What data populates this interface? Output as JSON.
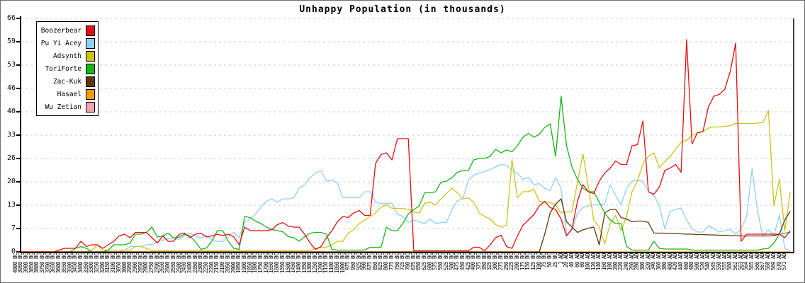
{
  "title": "Unhappy Population (in thousands)",
  "chart_data": {
    "type": "line",
    "title": "Unhappy Population (in thousands)",
    "xlabel": "",
    "ylabel": "",
    "y_ticks": [
      0,
      7,
      13,
      20,
      26,
      33,
      40,
      46,
      53,
      59,
      66
    ],
    "y_max": 66,
    "grid": "horizontal-dashed",
    "gridline_color": "#c9c9c9",
    "axis_color": "#000000",
    "legend_position": "top-left",
    "x_categories": [
      "4000 BC",
      "3950 BC",
      "3900 BC",
      "3850 BC",
      "3800 BC",
      "3750 BC",
      "3700 BC",
      "3650 BC",
      "3600 BC",
      "3550 BC",
      "3500 BC",
      "3450 BC",
      "3400 BC",
      "3350 BC",
      "3300 BC",
      "3250 BC",
      "3200 BC",
      "3150 BC",
      "3100 BC",
      "3050 BC",
      "3000 BC",
      "2950 BC",
      "2900 BC",
      "2850 BC",
      "2800 BC",
      "2750 BC",
      "2700 BC",
      "2650 BC",
      "2600 BC",
      "2550 BC",
      "2500 BC",
      "2450 BC",
      "2400 BC",
      "2350 BC",
      "2300 BC",
      "2250 BC",
      "2200 BC",
      "2150 BC",
      "2100 BC",
      "2050 BC",
      "2000 BC",
      "1950 BC",
      "1900 BC",
      "1850 BC",
      "1800 BC",
      "1750 BC",
      "1700 BC",
      "1650 BC",
      "1600 BC",
      "1550 BC",
      "1500 BC",
      "1450 BC",
      "1400 BC",
      "1350 BC",
      "1300 BC",
      "1250 BC",
      "1200 BC",
      "1150 BC",
      "1100 BC",
      "1050 BC",
      "1000 BC",
      "975 BC",
      "950 BC",
      "925 BC",
      "900 BC",
      "875 BC",
      "850 BC",
      "825 BC",
      "800 BC",
      "775 BC",
      "750 BC",
      "725 BC",
      "700 BC",
      "675 BC",
      "650 BC",
      "625 BC",
      "600 BC",
      "575 BC",
      "550 BC",
      "525 BC",
      "500 BC",
      "475 BC",
      "450 BC",
      "425 BC",
      "400 BC",
      "375 BC",
      "350 BC",
      "325 BC",
      "300 BC",
      "275 BC",
      "250 BC",
      "225 BC",
      "200 BC",
      "175 BC",
      "150 BC",
      "125 BC",
      "100 BC",
      "75 BC",
      "50 BC",
      "25 BC",
      "1 AD",
      "20 AD",
      "40 AD",
      "60 AD",
      "80 AD",
      "100 AD",
      "120 AD",
      "140 AD",
      "160 AD",
      "180 AD",
      "200 AD",
      "220 AD",
      "240 AD",
      "260 AD",
      "280 AD",
      "300 AD",
      "320 AD",
      "340 AD",
      "360 AD",
      "380 AD",
      "400 AD",
      "420 AD",
      "440 AD",
      "460 AD",
      "480 AD",
      "500 AD",
      "520 AD",
      "540 AD",
      "545 AD",
      "550 AD",
      "555 AD",
      "560 AD",
      "562 AD",
      "563 AD",
      "564 AD",
      "565 AD",
      "566 AD",
      "567 AD",
      "568 AD",
      "569 AD",
      "570 AD",
      "571 AD"
    ],
    "series": [
      {
        "name": "Boozerbear",
        "color": "#e60f0f",
        "values": [
          0,
          0,
          0,
          0,
          0,
          0,
          0,
          0.5,
          1,
          1,
          1,
          3,
          1.5,
          2,
          2,
          1,
          2,
          3,
          4.5,
          5,
          4,
          5.5,
          5.5,
          5.5,
          4,
          2.5,
          4.5,
          3,
          3,
          5,
          5.3,
          4,
          5,
          5.3,
          4.2,
          4.5,
          5,
          4.6,
          5,
          4.3,
          2,
          7,
          6,
          6,
          6,
          6,
          6.3,
          7.7,
          8.3,
          7.3,
          7,
          7,
          5,
          2.5,
          0.7,
          1.5,
          4,
          6,
          8.5,
          10,
          9.7,
          11,
          11.7,
          10.3,
          10.3,
          25,
          27.5,
          28,
          26,
          32,
          32,
          32,
          0.3,
          0.3,
          0.3,
          0.3,
          0.3,
          0.3,
          0.3,
          0.3,
          0.3,
          0.3,
          0.3,
          1.3,
          1.3,
          0.3,
          2,
          4,
          4.7,
          1.5,
          1,
          4.5,
          7.5,
          9,
          10.5,
          13,
          14.3,
          12.5,
          12,
          9.3,
          4.5,
          6.5,
          14.3,
          19,
          17,
          16.5,
          20,
          22.3,
          23.7,
          25.7,
          24.7,
          24.7,
          30,
          30.3,
          37,
          17,
          16.3,
          18.3,
          23,
          23.7,
          24.7,
          22.5,
          60,
          30.5,
          33.7,
          34,
          41,
          44,
          44.5,
          46,
          51,
          59,
          3,
          5,
          5,
          5,
          5,
          5,
          5,
          5,
          4,
          6
        ]
      },
      {
        "name": "Pu Yi Acey",
        "color": "#8fd0f2",
        "values": [
          0,
          0,
          0,
          0,
          0,
          0,
          0,
          0,
          0,
          0,
          0,
          0,
          0,
          0,
          0,
          0,
          0,
          0,
          0,
          0.5,
          1.5,
          1.5,
          1.5,
          2,
          2.1,
          2.8,
          3.3,
          3.7,
          3.9,
          3.5,
          4.6,
          5.3,
          4.5,
          3.9,
          4.6,
          3.5,
          3,
          2.8,
          4.6,
          5.5,
          4,
          8.3,
          9.3,
          10.7,
          12.7,
          14.3,
          15,
          14,
          15,
          15,
          15.3,
          18,
          19,
          21,
          22.3,
          23,
          20,
          20.3,
          19.5,
          15.3,
          15.3,
          15.3,
          15.3,
          17,
          17,
          14,
          13.7,
          13.7,
          13.7,
          10.7,
          10,
          8.3,
          9,
          8.5,
          8,
          9.3,
          8,
          8.3,
          8.3,
          12,
          14.5,
          15,
          20.3,
          21.7,
          22.3,
          22.7,
          23.3,
          24,
          24.7,
          24.5,
          23,
          22.3,
          20.5,
          21,
          19,
          19.3,
          18,
          17.3,
          21,
          18,
          5,
          6,
          11,
          12.5,
          13,
          13.3,
          13.3,
          13.5,
          19,
          16,
          13.3,
          18,
          20,
          20.3,
          20,
          17,
          16,
          13,
          6.5,
          11.5,
          12,
          12.4,
          9,
          6.6,
          5.6,
          5.6,
          7.4,
          6.6,
          5.6,
          6,
          6.3,
          5,
          6.5,
          10,
          23.5,
          11.5,
          4.3,
          6.3,
          4.7,
          10.3,
          1,
          0.3
        ]
      },
      {
        "name": "Adsynth",
        "color": "#cfc218",
        "values": [
          0,
          0,
          0,
          0,
          0,
          0,
          0,
          0,
          0,
          0,
          0,
          0,
          0,
          0.5,
          2,
          0.5,
          0.5,
          0.5,
          0.5,
          0.5,
          0.5,
          1.5,
          1.5,
          1,
          0.4,
          0.4,
          0.4,
          0.4,
          0.4,
          0.4,
          0.4,
          0.4,
          0.4,
          0.4,
          0.4,
          0.4,
          0.4,
          0.4,
          0.4,
          0.4,
          0.4,
          0.4,
          0.4,
          0.4,
          0.4,
          0.4,
          0.4,
          0.4,
          0.4,
          0.4,
          0.4,
          0.4,
          0.4,
          0.4,
          1,
          1.2,
          1.3,
          2,
          3,
          3,
          5.3,
          6.3,
          8,
          9,
          10,
          11,
          12.7,
          13.3,
          12.3,
          12.3,
          12.3,
          12,
          11.3,
          11,
          13.7,
          14,
          13.3,
          15,
          16.5,
          18,
          16.7,
          15,
          15.3,
          14,
          11,
          10,
          9.3,
          7.7,
          7,
          7.5,
          26,
          15.3,
          17,
          17,
          17.7,
          14.3,
          14,
          14,
          13.3,
          11,
          11.3,
          11.3,
          19.7,
          27.7,
          18.3,
          9,
          7,
          2.3,
          8,
          10.3,
          6,
          10,
          17,
          20,
          25,
          27,
          28,
          23.7,
          25.5,
          27,
          29,
          31,
          31.5,
          33,
          33.5,
          34,
          35,
          35.3,
          35.3,
          35.5,
          35.7,
          36.3,
          36.3,
          36.3,
          36.3,
          36.4,
          36.6,
          40,
          13,
          20.5,
          6,
          17
        ]
      },
      {
        "name": "ToriForte",
        "color": "#17b517",
        "values": [
          0,
          0,
          0,
          0,
          0,
          0,
          0,
          0,
          0,
          0,
          1,
          1.5,
          1,
          0,
          0,
          0,
          0.5,
          2,
          2,
          2,
          2.5,
          5,
          5,
          5.5,
          7,
          4.2,
          4.5,
          5.3,
          3.9,
          4.2,
          5,
          4.5,
          2.8,
          0.7,
          1.1,
          3,
          6,
          6,
          3,
          1,
          0.7,
          10,
          9.7,
          8.7,
          8,
          7,
          6.3,
          6,
          5.7,
          4.3,
          4,
          3,
          4.3,
          5.3,
          5.5,
          5.5,
          5,
          0.7,
          0.5,
          0.5,
          0.5,
          0.5,
          0.5,
          0.5,
          1.3,
          1.3,
          1.3,
          7,
          6,
          6,
          8,
          10.7,
          12,
          13,
          16.7,
          16.7,
          17,
          19.7,
          20,
          21,
          22.5,
          23,
          23,
          26,
          26.4,
          26.4,
          27,
          29,
          28,
          28.8,
          28.3,
          30,
          32.4,
          33.5,
          32.4,
          33.2,
          35.2,
          36.2,
          27,
          44,
          30,
          24,
          20.5,
          18,
          17,
          17,
          14,
          11,
          9,
          8,
          8,
          1.5,
          0.5,
          0.5,
          0.5,
          0.5,
          3,
          1,
          0.8,
          0.8,
          0.8,
          0.8,
          0.8,
          0.5,
          0.5,
          0.5,
          0.5,
          0.5,
          0.5,
          0.5,
          0.5,
          0.5,
          0.5,
          0.5,
          0.5,
          0.5,
          0.8,
          1,
          2.5,
          5,
          5.3,
          5.5
        ]
      },
      {
        "name": "Zac-Kuk",
        "color": "#61380b",
        "values": [
          0,
          0,
          0,
          0,
          0,
          0,
          0,
          0,
          0,
          0,
          0,
          0,
          0,
          0,
          0,
          0,
          0,
          0,
          0,
          0,
          0,
          0,
          0,
          0,
          0,
          0,
          0,
          0,
          0,
          0,
          0,
          0,
          0,
          0,
          0,
          0,
          0,
          0,
          0,
          0,
          0,
          0,
          0,
          0,
          0,
          0,
          0,
          0,
          0,
          0,
          0,
          0,
          0,
          0,
          0,
          0,
          0,
          0,
          0,
          0,
          0,
          0,
          0,
          0,
          0,
          0,
          0,
          0,
          0,
          0,
          0,
          0,
          0,
          0,
          0,
          0,
          0,
          0,
          0,
          0,
          0,
          0,
          0,
          0,
          0,
          0,
          0,
          0,
          0,
          0,
          0,
          0,
          0,
          0,
          0,
          0,
          5,
          11,
          13.5,
          15,
          8.5,
          7,
          5.5,
          6.2,
          6.7,
          7,
          2,
          11,
          12,
          12,
          9.7,
          9.3,
          8.5,
          8.7,
          8.7,
          8.3,
          5.3,
          5.3,
          5.3,
          5.2,
          5.2,
          5.1,
          5,
          5,
          4.9,
          4.9,
          4.8,
          4.8,
          4.7,
          4.7,
          4.6,
          4.6,
          4.5,
          4.5,
          4.5,
          4.5,
          4.5,
          4.5,
          4.6,
          5,
          9,
          11.5
        ]
      },
      {
        "name": "Hasael",
        "color": "#ff9c00",
        "values": [
          0,
          0,
          0,
          0,
          0,
          0,
          0,
          0,
          0,
          0,
          0,
          0,
          0,
          0,
          0,
          0,
          0,
          0,
          0,
          0,
          0,
          0,
          0,
          0,
          0,
          0,
          0,
          0,
          0,
          0,
          0,
          0,
          0,
          0,
          0,
          0,
          0,
          0,
          0,
          0,
          0,
          0,
          0,
          0,
          0,
          0,
          0,
          0,
          0,
          0,
          0,
          0,
          0,
          0,
          0,
          0,
          0,
          0,
          0,
          0,
          0,
          0,
          0,
          0,
          0,
          0,
          0,
          0,
          0,
          0,
          0,
          0,
          0,
          0,
          0,
          0,
          0,
          0,
          0,
          0,
          0,
          0,
          0,
          0,
          0,
          0,
          0,
          0,
          0,
          0,
          0,
          0,
          0,
          0,
          0,
          0,
          0,
          0,
          0,
          0,
          0,
          0,
          0,
          0,
          0,
          0,
          0,
          0,
          0,
          0,
          0,
          0,
          0,
          0,
          0,
          0,
          0,
          0,
          0,
          0,
          0,
          0,
          0,
          0,
          0,
          0,
          0,
          0,
          0,
          0,
          0,
          0,
          0,
          0,
          0,
          0,
          0,
          0,
          0,
          0,
          0,
          0
        ]
      },
      {
        "name": "Wu Zetian",
        "color": "#f4a2b2",
        "values": [
          0,
          0,
          0,
          0,
          0,
          0,
          0,
          0,
          0,
          0,
          0,
          0,
          0,
          0,
          0,
          0,
          0,
          0,
          0,
          0,
          0,
          0,
          0,
          0,
          0,
          0,
          0,
          0,
          0,
          0,
          0,
          0,
          0,
          0,
          0,
          0,
          0,
          0,
          0,
          0,
          0,
          0,
          0,
          0,
          0,
          0,
          0,
          0,
          0,
          0,
          0,
          0,
          0,
          0,
          0,
          0,
          0,
          0,
          0,
          0,
          0,
          0,
          0,
          0,
          0,
          0,
          0,
          0,
          0,
          0,
          0,
          0,
          0,
          0,
          0,
          0,
          0,
          0,
          0,
          0,
          0,
          0,
          0,
          0,
          0,
          0,
          0,
          0,
          0,
          0,
          0,
          0,
          0,
          0,
          0,
          0,
          0,
          0,
          0,
          0,
          0,
          0,
          0,
          0,
          0,
          0,
          0,
          0,
          0,
          0,
          0,
          0,
          0,
          0,
          0,
          0,
          0,
          0,
          0,
          0,
          0,
          0,
          0,
          0,
          0,
          0,
          0,
          0,
          0,
          0,
          0,
          0,
          0,
          0,
          0,
          0,
          0,
          0,
          0,
          0,
          0,
          0
        ]
      }
    ]
  }
}
